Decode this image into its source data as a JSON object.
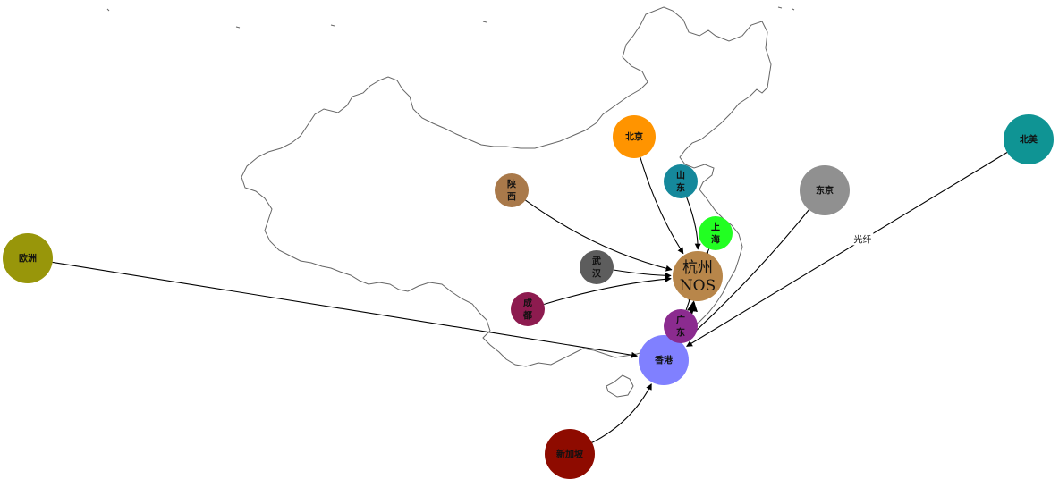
{
  "diagram": {
    "nodes": [
      {
        "id": "hangzhou",
        "lines": [
          "杭州",
          "NOS"
        ],
        "color": "#B8864A",
        "hub": true
      },
      {
        "id": "xianggang",
        "lines": [
          "香港"
        ],
        "color": "#8080FF"
      },
      {
        "id": "beijing",
        "lines": [
          "北京"
        ],
        "color": "#FF9400"
      },
      {
        "id": "shandong",
        "lines": [
          "山",
          "东"
        ],
        "color": "#15889B"
      },
      {
        "id": "shanghai",
        "lines": [
          "上",
          "海"
        ],
        "color": "#22FF22"
      },
      {
        "id": "shaanxi",
        "lines": [
          "陕",
          "西"
        ],
        "color": "#A9794A"
      },
      {
        "id": "wuhan",
        "lines": [
          "武",
          "汉"
        ],
        "color": "#5D5D5D"
      },
      {
        "id": "chengdu",
        "lines": [
          "成",
          "都"
        ],
        "color": "#8D1B4F"
      },
      {
        "id": "guangdong",
        "lines": [
          "广",
          "东"
        ],
        "color": "#8B2B8F"
      },
      {
        "id": "dongjing",
        "lines": [
          "东京"
        ],
        "color": "#909090"
      },
      {
        "id": "beimei",
        "lines": [
          "北美"
        ],
        "color": "#0F9494"
      },
      {
        "id": "ouzhou",
        "lines": [
          "欧洲"
        ],
        "color": "#98960A"
      },
      {
        "id": "xinjiapo",
        "lines": [
          "新加坡"
        ],
        "color": "#8E0B00"
      }
    ],
    "edges": [
      {
        "from": "beijing",
        "to": "hangzhou"
      },
      {
        "from": "shandong",
        "to": "hangzhou"
      },
      {
        "from": "shaanxi",
        "to": "hangzhou"
      },
      {
        "from": "wuhan",
        "to": "hangzhou"
      },
      {
        "from": "chengdu",
        "to": "hangzhou"
      },
      {
        "from": "xianggang",
        "to": "hangzhou",
        "bold": true
      },
      {
        "from": "shanghai",
        "to": "hangzhou"
      },
      {
        "from": "guangdong",
        "to": "hangzhou"
      },
      {
        "from": "ouzhou",
        "to": "xianggang"
      },
      {
        "from": "beimei",
        "to": "xianggang",
        "label": "光纤"
      },
      {
        "from": "dongjing",
        "to": "xianggang"
      },
      {
        "from": "xinjiapo",
        "to": "xianggang"
      }
    ]
  }
}
